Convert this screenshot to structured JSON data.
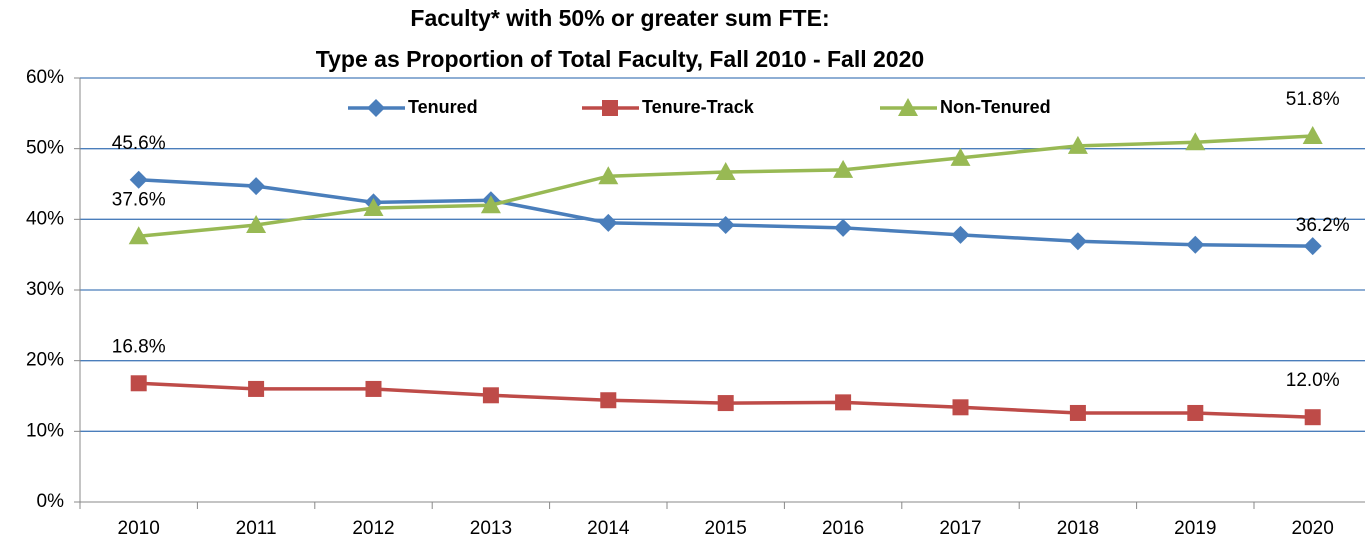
{
  "chart_data": {
    "type": "line",
    "title": [
      "Faculty* with 50% or greater sum FTE:",
      "Type as Proportion of Total Faculty, Fall 2010 - Fall 2020"
    ],
    "categories": [
      "2010",
      "2011",
      "2012",
      "2013",
      "2014",
      "2015",
      "2016",
      "2017",
      "2018",
      "2019",
      "2020"
    ],
    "series": [
      {
        "name": "Tenured",
        "color": "#4a7ebb",
        "marker": "diamond",
        "values": [
          45.6,
          44.7,
          42.4,
          42.7,
          39.5,
          39.2,
          38.8,
          37.8,
          36.9,
          36.4,
          36.2
        ],
        "value_labels": [
          "45.6%",
          null,
          null,
          null,
          null,
          null,
          null,
          null,
          null,
          null,
          "36.2%"
        ]
      },
      {
        "name": "Tenure-Track",
        "color": "#be4b48",
        "marker": "square",
        "values": [
          16.8,
          16.0,
          16.0,
          15.1,
          14.4,
          14.0,
          14.1,
          13.4,
          12.6,
          12.6,
          12.0
        ],
        "value_labels": [
          "16.8%",
          null,
          null,
          null,
          null,
          null,
          null,
          null,
          null,
          null,
          "12.0%"
        ]
      },
      {
        "name": "Non-Tenured",
        "color": "#98b954",
        "marker": "triangle",
        "values": [
          37.6,
          39.2,
          41.6,
          42.0,
          46.1,
          46.7,
          47.0,
          48.7,
          50.4,
          50.9,
          51.8
        ],
        "value_labels": [
          "37.6%",
          null,
          null,
          null,
          null,
          null,
          null,
          null,
          null,
          null,
          "51.8%"
        ]
      }
    ],
    "ylim": [
      0,
      60
    ],
    "yticks": [
      {
        "value": 0,
        "label": "0%"
      },
      {
        "value": 10,
        "label": "10%"
      },
      {
        "value": 20,
        "label": "20%"
      },
      {
        "value": 30,
        "label": "30%"
      },
      {
        "value": 40,
        "label": "40%"
      },
      {
        "value": 50,
        "label": "50%"
      },
      {
        "value": 60,
        "label": "60%"
      }
    ],
    "grid": true,
    "legend": "top"
  }
}
